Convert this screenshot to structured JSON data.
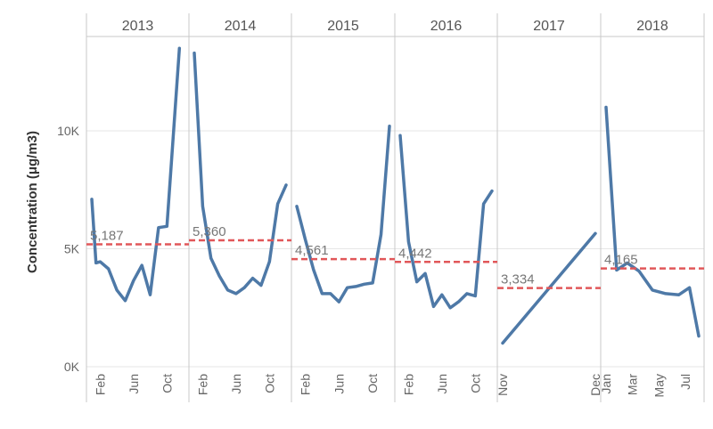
{
  "chart_data": {
    "type": "line",
    "ylabel": "Concentration (μg/m3)",
    "ylim": [
      0,
      14000
    ],
    "yticks": [
      {
        "value": 0,
        "label": "0K"
      },
      {
        "value": 5000,
        "label": "5K"
      },
      {
        "value": 10000,
        "label": "10K"
      }
    ],
    "colors": {
      "line": "#4e79a7",
      "average": "#e15759",
      "grid": "#e6e6e6",
      "divider": "#c8c8c8"
    },
    "panels": [
      {
        "year": "2013",
        "average": 5187,
        "average_label": "5,187",
        "x_range": [
          1,
          12
        ],
        "month_ticks": [
          {
            "m": 2,
            "label": "Feb"
          },
          {
            "m": 6,
            "label": "Jun"
          },
          {
            "m": 10,
            "label": "Oct"
          }
        ],
        "points": [
          {
            "m": 1,
            "v": 7100
          },
          {
            "m": 1.5,
            "v": 4400
          },
          {
            "m": 2,
            "v": 4450
          },
          {
            "m": 3,
            "v": 4150
          },
          {
            "m": 4,
            "v": 3250
          },
          {
            "m": 5,
            "v": 2800
          },
          {
            "m": 6,
            "v": 3650
          },
          {
            "m": 7,
            "v": 4300
          },
          {
            "m": 8,
            "v": 3050
          },
          {
            "m": 9,
            "v": 5900
          },
          {
            "m": 10,
            "v": 5950
          },
          {
            "m": 11.5,
            "v": 13500
          }
        ]
      },
      {
        "year": "2014",
        "average": 5360,
        "average_label": "5,360",
        "x_range": [
          1,
          12
        ],
        "month_ticks": [
          {
            "m": 2,
            "label": "Feb"
          },
          {
            "m": 6,
            "label": "Jun"
          },
          {
            "m": 10,
            "label": "Oct"
          }
        ],
        "points": [
          {
            "m": 1,
            "v": 13300
          },
          {
            "m": 2,
            "v": 6800
          },
          {
            "m": 3,
            "v": 4600
          },
          {
            "m": 4,
            "v": 3850
          },
          {
            "m": 5,
            "v": 3250
          },
          {
            "m": 6,
            "v": 3100
          },
          {
            "m": 7,
            "v": 3350
          },
          {
            "m": 8,
            "v": 3750
          },
          {
            "m": 9,
            "v": 3450
          },
          {
            "m": 10,
            "v": 4450
          },
          {
            "m": 11,
            "v": 6900
          },
          {
            "m": 12,
            "v": 7700
          }
        ]
      },
      {
        "year": "2015",
        "average": 4561,
        "average_label": "4,561",
        "x_range": [
          1,
          12
        ],
        "month_ticks": [
          {
            "m": 2,
            "label": "Feb"
          },
          {
            "m": 6,
            "label": "Jun"
          },
          {
            "m": 10,
            "label": "Oct"
          }
        ],
        "points": [
          {
            "m": 1,
            "v": 6800
          },
          {
            "m": 2,
            "v": 5400
          },
          {
            "m": 3,
            "v": 4100
          },
          {
            "m": 4,
            "v": 3100
          },
          {
            "m": 5,
            "v": 3100
          },
          {
            "m": 6,
            "v": 2750
          },
          {
            "m": 7,
            "v": 3350
          },
          {
            "m": 8,
            "v": 3400
          },
          {
            "m": 9,
            "v": 3500
          },
          {
            "m": 10,
            "v": 3550
          },
          {
            "m": 11,
            "v": 5600
          },
          {
            "m": 12,
            "v": 10200
          }
        ]
      },
      {
        "year": "2016",
        "average": 4442,
        "average_label": "4,442",
        "x_range": [
          1,
          12
        ],
        "month_ticks": [
          {
            "m": 2,
            "label": "Feb"
          },
          {
            "m": 6,
            "label": "Jun"
          },
          {
            "m": 10,
            "label": "Oct"
          }
        ],
        "points": [
          {
            "m": 1,
            "v": 9800
          },
          {
            "m": 2,
            "v": 5300
          },
          {
            "m": 3,
            "v": 3600
          },
          {
            "m": 4,
            "v": 3950
          },
          {
            "m": 5,
            "v": 2550
          },
          {
            "m": 6,
            "v": 3050
          },
          {
            "m": 7,
            "v": 2500
          },
          {
            "m": 8,
            "v": 2750
          },
          {
            "m": 9,
            "v": 3100
          },
          {
            "m": 10,
            "v": 3000
          },
          {
            "m": 11,
            "v": 6900
          },
          {
            "m": 12,
            "v": 7450
          }
        ]
      },
      {
        "year": "2017",
        "average": 3334,
        "average_label": "3,334",
        "x_range": [
          11,
          12
        ],
        "month_ticks": [
          {
            "m": 11,
            "label": "Nov"
          },
          {
            "m": 12,
            "label": "Dec"
          }
        ],
        "points": [
          {
            "m": 11,
            "v": 1000
          },
          {
            "m": 12,
            "v": 5650
          }
        ]
      },
      {
        "year": "2018",
        "average": 4165,
        "average_label": "4,165",
        "x_range": [
          1,
          8
        ],
        "month_ticks": [
          {
            "m": 1,
            "label": "Jan"
          },
          {
            "m": 3,
            "label": "Mar"
          },
          {
            "m": 5,
            "label": "May"
          },
          {
            "m": 7,
            "label": "Jul"
          }
        ],
        "points": [
          {
            "m": 1,
            "v": 11000
          },
          {
            "m": 1.8,
            "v": 4100
          },
          {
            "m": 2.6,
            "v": 4400
          },
          {
            "m": 3.5,
            "v": 4050
          },
          {
            "m": 4.5,
            "v": 3250
          },
          {
            "m": 5.5,
            "v": 3100
          },
          {
            "m": 6.5,
            "v": 3050
          },
          {
            "m": 7.3,
            "v": 3350
          },
          {
            "m": 8,
            "v": 1300
          }
        ]
      }
    ]
  }
}
